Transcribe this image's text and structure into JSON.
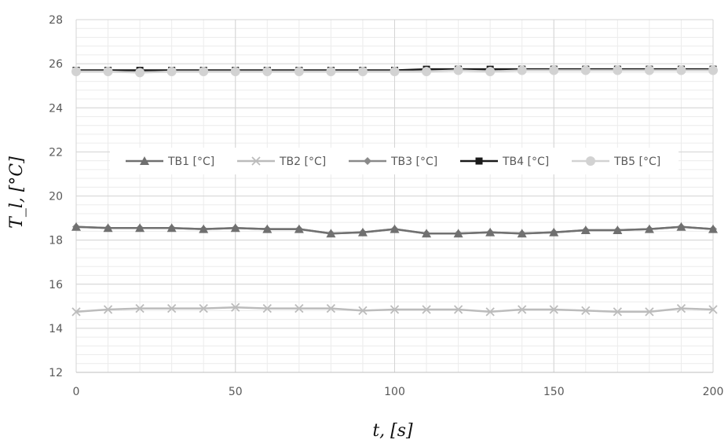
{
  "chart_data": {
    "type": "line",
    "x_ticks": [
      0,
      50,
      100,
      150,
      200
    ],
    "y_ticks": [
      12,
      14,
      16,
      18,
      20,
      22,
      24,
      26,
      28
    ],
    "xlim": [
      0,
      200
    ],
    "ylim": [
      12,
      28
    ],
    "grid": true,
    "xlabel": "t, [s]",
    "ylabel": "T_l, [°C]",
    "legend_position": "center",
    "x": [
      0,
      10,
      20,
      30,
      40,
      50,
      60,
      70,
      80,
      90,
      100,
      110,
      120,
      130,
      140,
      150,
      160,
      170,
      180,
      190,
      200
    ],
    "series": [
      {
        "name": "TB1 [°C]",
        "color": "#707070",
        "marker": "triangle",
        "values": [
          18.6,
          18.55,
          18.55,
          18.55,
          18.5,
          18.55,
          18.5,
          18.5,
          18.3,
          18.35,
          18.5,
          18.3,
          18.3,
          18.35,
          18.3,
          18.35,
          18.45,
          18.45,
          18.5,
          18.6,
          18.5
        ]
      },
      {
        "name": "TB2 [°C]",
        "color": "#bcbcbc",
        "marker": "x",
        "values": [
          14.75,
          14.85,
          14.9,
          14.9,
          14.9,
          14.95,
          14.9,
          14.9,
          14.9,
          14.8,
          14.85,
          14.85,
          14.85,
          14.75,
          14.85,
          14.85,
          14.8,
          14.75,
          14.75,
          14.9,
          14.85
        ]
      },
      {
        "name": "TB3 [°C]",
        "color": "#8a8a8a",
        "marker": "diamond",
        "values": [
          18.6,
          18.55,
          18.55,
          18.55,
          18.5,
          18.55,
          18.5,
          18.5,
          18.3,
          18.35,
          18.5,
          18.3,
          18.3,
          18.35,
          18.3,
          18.35,
          18.45,
          18.45,
          18.5,
          18.6,
          18.5
        ]
      },
      {
        "name": "TB4 [°C]",
        "color": "#1a1a1a",
        "marker": "square",
        "values": [
          25.7,
          25.7,
          25.7,
          25.7,
          25.7,
          25.7,
          25.7,
          25.7,
          25.7,
          25.7,
          25.7,
          25.75,
          25.75,
          25.75,
          25.75,
          25.75,
          25.75,
          25.75,
          25.75,
          25.75,
          25.75
        ]
      },
      {
        "name": "TB5 [°C]",
        "color": "#d2d2d2",
        "marker": "circle",
        "values": [
          25.65,
          25.65,
          25.6,
          25.65,
          25.65,
          25.65,
          25.65,
          25.65,
          25.65,
          25.65,
          25.65,
          25.65,
          25.7,
          25.65,
          25.7,
          25.7,
          25.7,
          25.7,
          25.7,
          25.7,
          25.7
        ]
      }
    ]
  }
}
